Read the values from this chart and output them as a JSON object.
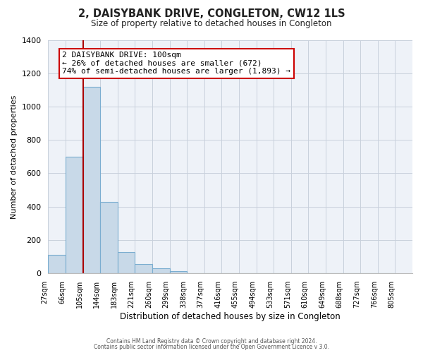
{
  "title": "2, DAISYBANK DRIVE, CONGLETON, CW12 1LS",
  "subtitle": "Size of property relative to detached houses in Congleton",
  "xlabel": "Distribution of detached houses by size in Congleton",
  "ylabel": "Number of detached properties",
  "bin_labels": [
    "27sqm",
    "66sqm",
    "105sqm",
    "144sqm",
    "183sqm",
    "221sqm",
    "260sqm",
    "299sqm",
    "338sqm",
    "377sqm",
    "416sqm",
    "455sqm",
    "494sqm",
    "533sqm",
    "571sqm",
    "610sqm",
    "649sqm",
    "688sqm",
    "727sqm",
    "766sqm",
    "805sqm"
  ],
  "bar_values": [
    110,
    700,
    1120,
    430,
    130,
    55,
    30,
    12,
    0,
    0,
    0,
    0,
    0,
    0,
    0,
    0,
    0,
    0,
    0,
    0
  ],
  "bar_color": "#c8d9e8",
  "bar_edge_color": "#7aadd0",
  "property_line_x": 1.5,
  "property_line_color": "#aa0000",
  "ylim": [
    0,
    1400
  ],
  "yticks": [
    0,
    200,
    400,
    600,
    800,
    1000,
    1200,
    1400
  ],
  "annotation_title": "2 DAISYBANK DRIVE: 100sqm",
  "annotation_line1": "← 26% of detached houses are smaller (672)",
  "annotation_line2": "74% of semi-detached houses are larger (1,893) →",
  "annotation_box_color": "#ffffff",
  "annotation_box_edge": "#cc0000",
  "footer_line1": "Contains HM Land Registry data © Crown copyright and database right 2024.",
  "footer_line2": "Contains public sector information licensed under the Open Government Licence v 3.0.",
  "background_color": "#ffffff",
  "plot_bg_color": "#eef2f8",
  "grid_color": "#c8d0dc"
}
